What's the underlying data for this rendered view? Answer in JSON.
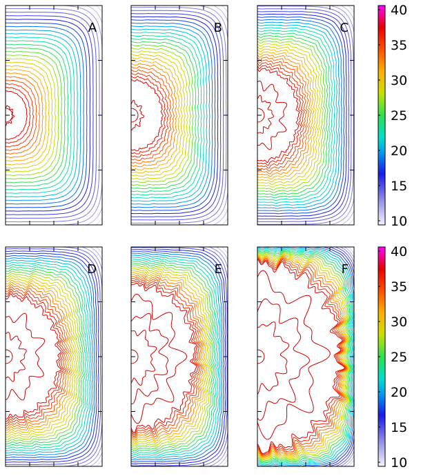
{
  "chart_data": {
    "type": "contour",
    "panels": [
      {
        "label": "A",
        "inner_region": 0.22,
        "roughness": 0.15,
        "bands": 26
      },
      {
        "label": "B",
        "inner_region": 0.32,
        "roughness": 0.3,
        "bands": 26
      },
      {
        "label": "C",
        "inner_region": 0.42,
        "roughness": 0.4,
        "bands": 26
      },
      {
        "label": "D",
        "inner_region": 0.55,
        "roughness": 0.5,
        "bands": 24
      },
      {
        "label": "E",
        "inner_region": 0.65,
        "roughness": 0.55,
        "bands": 22
      },
      {
        "label": "F",
        "inner_region": 0.84,
        "roughness": 0.65,
        "bands": 20
      }
    ],
    "colorbar": {
      "range": [
        10,
        40
      ],
      "ticks": [
        10,
        15,
        20,
        25,
        30,
        35,
        40
      ],
      "colormap": [
        [
          10,
          "#f4f2ff"
        ],
        [
          13,
          "#9e9ae6"
        ],
        [
          17,
          "#1a1ae6"
        ],
        [
          20,
          "#00a0f0"
        ],
        [
          22,
          "#00e0c8"
        ],
        [
          25,
          "#30e050"
        ],
        [
          28,
          "#c8e000"
        ],
        [
          31,
          "#ffb000"
        ],
        [
          34,
          "#ff5000"
        ],
        [
          37,
          "#e80000"
        ],
        [
          40,
          "#ff00ff"
        ]
      ]
    }
  }
}
